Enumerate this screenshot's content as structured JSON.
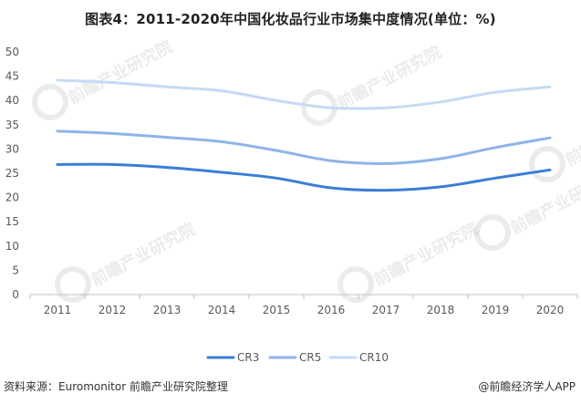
{
  "title": "图表4：2011-2020年中国化妆品行业市场集中度情况(单位：%)",
  "footer": {
    "source": "资料来源：Euromonitor 前瞻产业研究院整理",
    "brand": "@前瞻经济学人APP"
  },
  "watermark": {
    "brand_name": "前瞻产业研究院"
  },
  "chart_data": {
    "type": "line",
    "x": [
      "2011",
      "2012",
      "2013",
      "2014",
      "2015",
      "2016",
      "2017",
      "2018",
      "2019",
      "2020"
    ],
    "yticks": [
      "0",
      "5",
      "10",
      "15",
      "20",
      "25",
      "30",
      "35",
      "40",
      "45",
      "50"
    ],
    "ylim": [
      0,
      50
    ],
    "grid": false,
    "legend_position": "bottom",
    "series": [
      {
        "name": "CR3",
        "color": "#3a7dd8",
        "values": [
          26.8,
          26.8,
          26.2,
          25.2,
          24.0,
          22.0,
          21.5,
          22.2,
          24.0,
          25.7
        ]
      },
      {
        "name": "CR5",
        "color": "#8db4e8",
        "values": [
          33.7,
          33.2,
          32.4,
          31.5,
          29.7,
          27.6,
          27.0,
          28.0,
          30.3,
          32.3
        ]
      },
      {
        "name": "CR10",
        "color": "#c5daf5",
        "values": [
          44.2,
          43.7,
          42.8,
          42.0,
          40.0,
          38.5,
          38.5,
          39.7,
          41.7,
          42.8
        ]
      }
    ]
  }
}
